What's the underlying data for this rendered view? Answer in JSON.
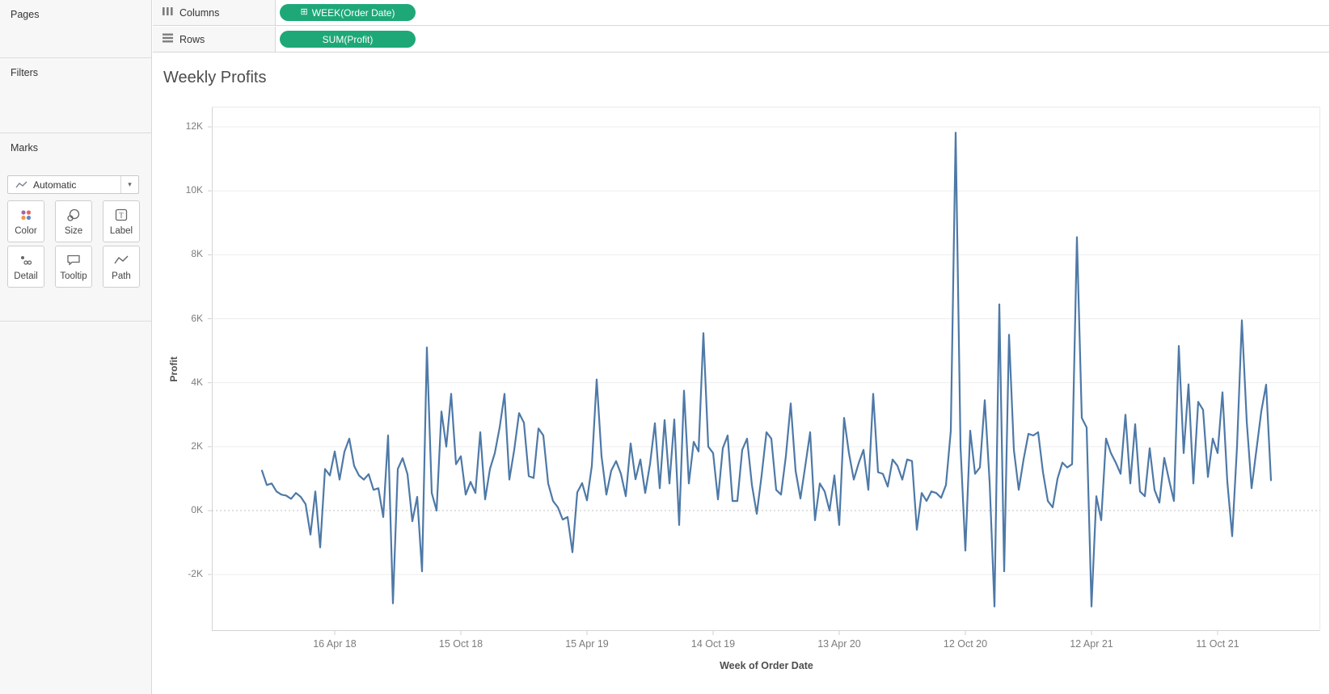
{
  "app": {
    "pill_green": "#1EA878",
    "line_color": "#4E79A7",
    "icons": {
      "caret_down": "▾",
      "plus_box": "⊞"
    }
  },
  "shelves": {
    "columns": {
      "label": "Columns",
      "pill": "WEEK(Order Date)"
    },
    "rows": {
      "label": "Rows",
      "pill": "SUM(Profit)"
    }
  },
  "sidebar": {
    "pages_label": "Pages",
    "filters_label": "Filters",
    "marks_label": "Marks",
    "mark_type": "Automatic",
    "color_icon_dots": [
      "#9c6bac",
      "#e8685f",
      "#f0964d",
      "#5f8bc0"
    ],
    "buttons": [
      {
        "label": "Color"
      },
      {
        "label": "Size"
      },
      {
        "label": "Label"
      },
      {
        "label": "Detail"
      },
      {
        "label": "Tooltip"
      },
      {
        "label": "Path"
      }
    ]
  },
  "chart_data": {
    "type": "line",
    "title": "Weekly Profits",
    "xlabel": "Week of Order Date",
    "ylabel": "Profit",
    "line_color": "#4E79A7",
    "grid": "horizontal-only",
    "zero_line": "dotted",
    "ylim": [
      -3.76,
      12.63
    ],
    "y_ticks": [
      "12K",
      "10K",
      "8K",
      "6K",
      "4K",
      "2K",
      "0K",
      "-2K"
    ],
    "y_tick_values": [
      12,
      10,
      8,
      6,
      4,
      2,
      0,
      -2
    ],
    "x_tick_labels": [
      "16 Apr 18",
      "15 Oct 18",
      "15 Apr 19",
      "14 Oct 19",
      "13 Apr 20",
      "12 Oct 20",
      "12 Apr 21",
      "11 Oct 21"
    ],
    "x_tick_weeks": [
      15,
      41,
      67,
      93,
      119,
      145,
      171,
      197
    ],
    "x_unit": "week",
    "weeks_start_label": "Jan 2018",
    "weekly_profit_k": [
      1.25,
      0.8,
      0.85,
      0.6,
      0.5,
      0.47,
      0.37,
      0.55,
      0.43,
      0.2,
      -0.75,
      0.6,
      -1.15,
      1.3,
      1.1,
      1.85,
      0.97,
      1.84,
      2.25,
      1.4,
      1.1,
      0.97,
      1.14,
      0.65,
      0.7,
      -0.2,
      2.35,
      -2.9,
      1.3,
      1.64,
      1.14,
      -0.33,
      0.43,
      -1.9,
      5.1,
      0.55,
      0.0,
      3.1,
      2.0,
      3.65,
      1.45,
      1.7,
      0.5,
      0.9,
      0.55,
      2.45,
      0.35,
      1.3,
      1.8,
      2.6,
      3.65,
      0.97,
      1.9,
      3.05,
      2.75,
      1.08,
      1.02,
      2.57,
      2.35,
      0.85,
      0.3,
      0.1,
      -0.28,
      -0.2,
      -1.3,
      0.57,
      0.86,
      0.32,
      1.4,
      4.1,
      1.7,
      0.5,
      1.25,
      1.55,
      1.15,
      0.45,
      2.1,
      0.98,
      1.6,
      0.55,
      1.46,
      2.73,
      0.7,
      2.83,
      0.85,
      2.85,
      -0.45,
      3.75,
      0.85,
      2.15,
      1.85,
      5.55,
      2.0,
      1.8,
      0.35,
      1.95,
      2.35,
      0.3,
      0.3,
      1.9,
      2.25,
      0.8,
      -0.1,
      1.1,
      2.45,
      2.25,
      0.65,
      0.5,
      1.7,
      3.35,
      1.25,
      0.38,
      1.4,
      2.45,
      -0.3,
      0.85,
      0.6,
      0.0,
      1.1,
      -0.45,
      2.9,
      1.8,
      0.97,
      1.48,
      1.9,
      0.65,
      3.65,
      1.2,
      1.15,
      0.75,
      1.6,
      1.4,
      0.97,
      1.6,
      1.55,
      -0.6,
      0.55,
      0.3,
      0.6,
      0.55,
      0.4,
      0.8,
      2.5,
      11.82,
      2.0,
      -1.25,
      2.5,
      1.15,
      1.35,
      3.45,
      0.9,
      -3.0,
      6.45,
      -1.9,
      5.5,
      1.9,
      0.65,
      1.6,
      2.4,
      2.35,
      2.45,
      1.2,
      0.3,
      0.1,
      1.0,
      1.5,
      1.35,
      1.45,
      8.55,
      2.9,
      2.6,
      -3.0,
      0.45,
      -0.3,
      2.25,
      1.8,
      1.5,
      1.15,
      3.0,
      0.85,
      2.7,
      0.6,
      0.45,
      1.95,
      0.65,
      0.25,
      1.65,
      0.95,
      0.3,
      5.15,
      1.8,
      3.95,
      0.85,
      3.4,
      3.15,
      1.05,
      2.25,
      1.8,
      3.7,
      0.9,
      -0.8,
      2.0,
      5.95,
      2.8,
      0.7,
      1.9,
      3.1,
      3.94,
      0.95
    ]
  }
}
